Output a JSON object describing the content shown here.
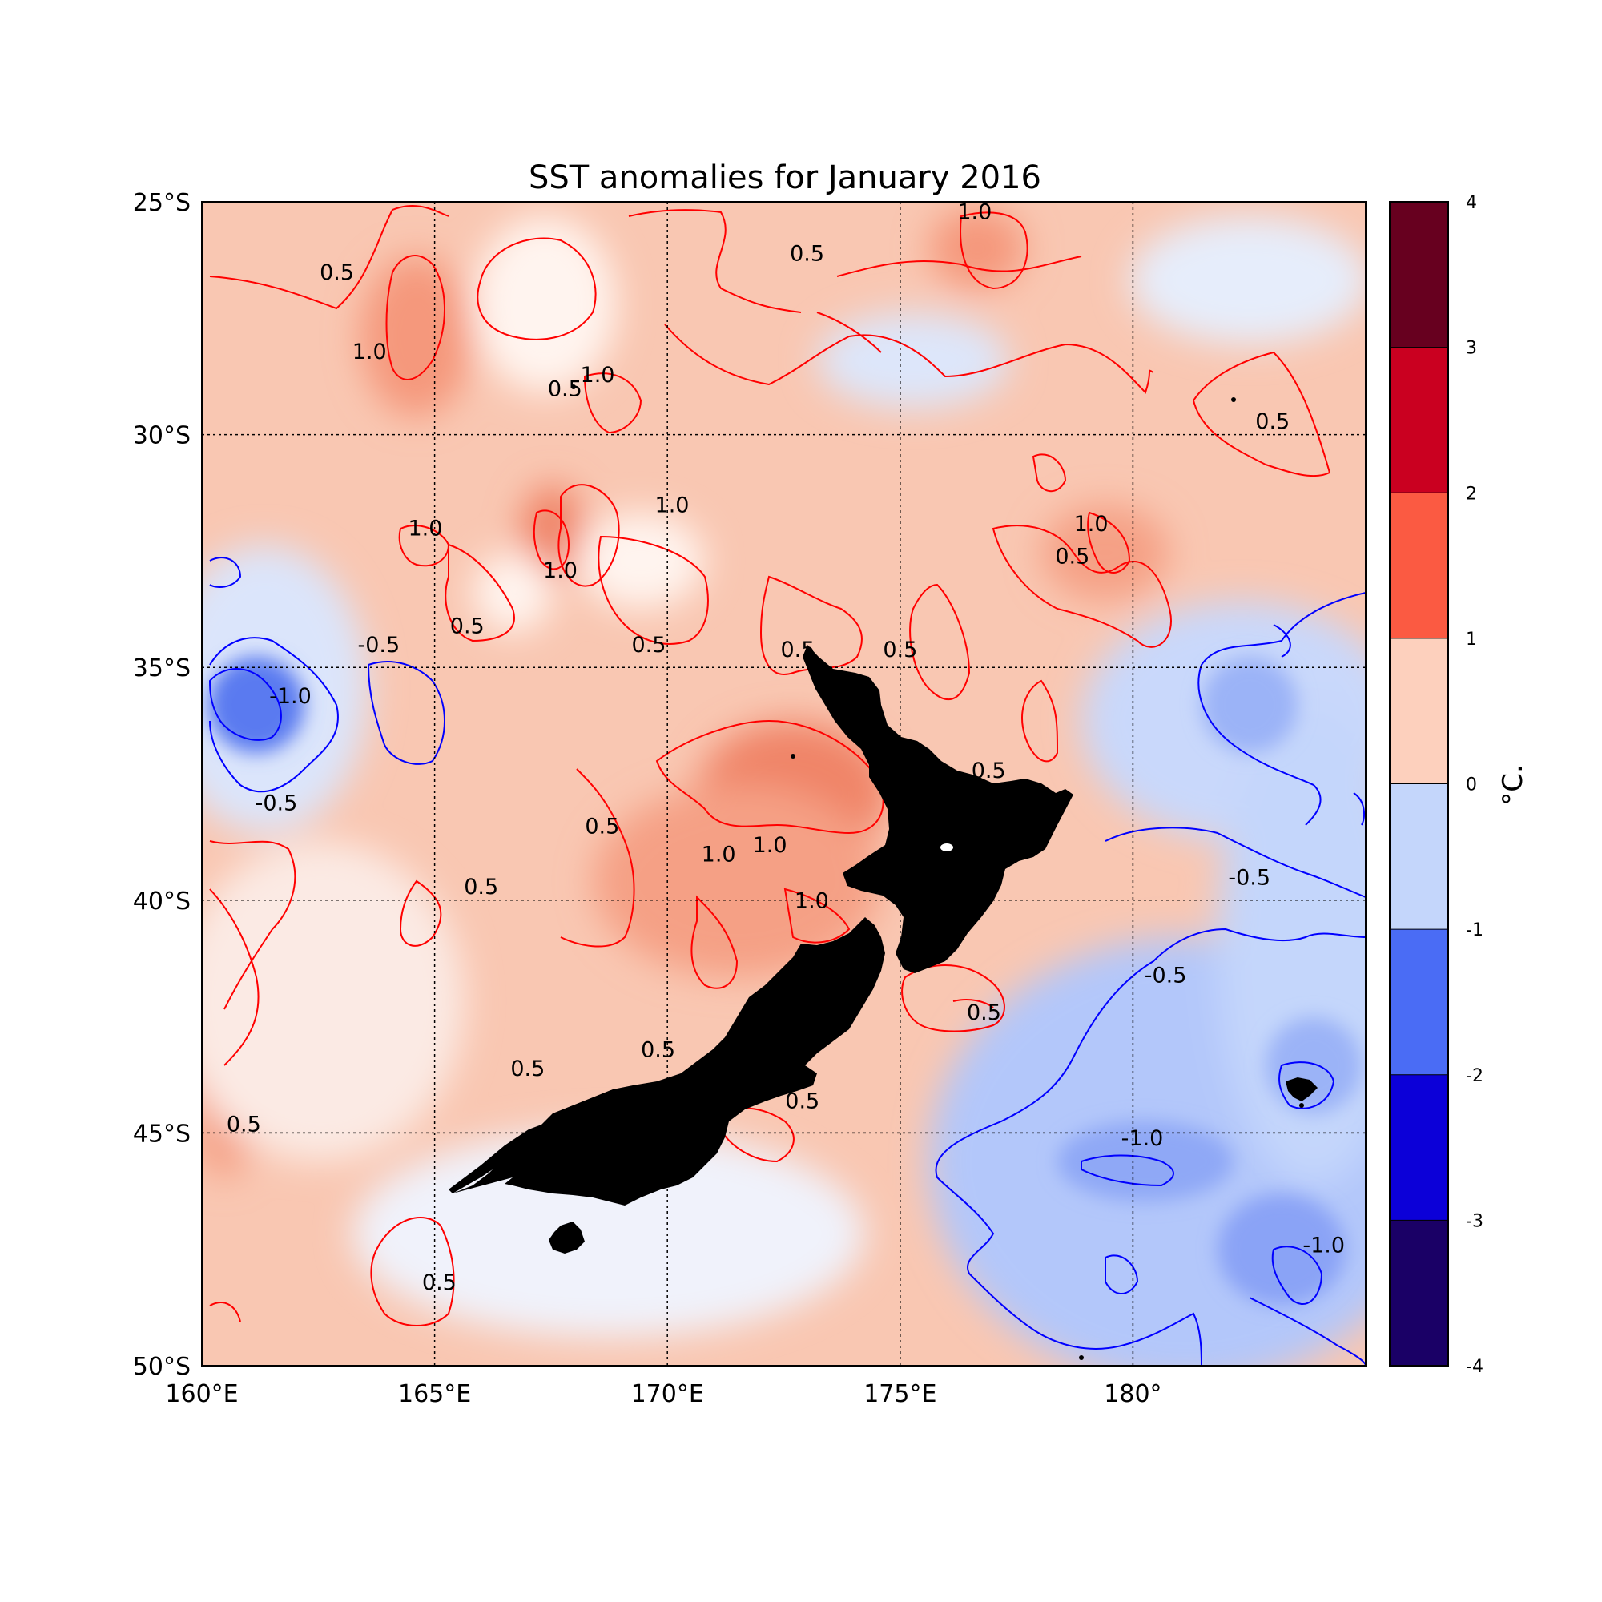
{
  "map": {
    "title": "SST anomalies for January 2016",
    "extent": {
      "lon_min": 160,
      "lon_max": 185,
      "lat_min": -50,
      "lat_max": -25
    },
    "lon_ticks": [
      {
        "value": 160,
        "label": "160°E"
      },
      {
        "value": 165,
        "label": "165°E"
      },
      {
        "value": 170,
        "label": "170°E"
      },
      {
        "value": 175,
        "label": "175°E"
      },
      {
        "value": 180,
        "label": "180°"
      }
    ],
    "lat_ticks": [
      {
        "value": -25,
        "label": "25°S"
      },
      {
        "value": -30,
        "label": "30°S"
      },
      {
        "value": -35,
        "label": "35°S"
      },
      {
        "value": -40,
        "label": "40°S"
      },
      {
        "value": -45,
        "label": "45°S"
      },
      {
        "value": -50,
        "label": "50°S"
      }
    ],
    "contour_labels": [
      {
        "text": "0.5",
        "lon": 162.9,
        "lat": -26.6,
        "color": "#000000"
      },
      {
        "text": "1.0",
        "lon": 163.6,
        "lat": -28.3,
        "color": "#000000"
      },
      {
        "text": "0.5",
        "lon": 167.8,
        "lat": -29.1,
        "color": "#000000"
      },
      {
        "text": "1.0",
        "lon": 168.5,
        "lat": -28.8,
        "color": "#000000"
      },
      {
        "text": "0.5",
        "lon": 173.0,
        "lat": -26.2,
        "color": "#000000"
      },
      {
        "text": "1.0",
        "lon": 176.6,
        "lat": -25.3,
        "color": "#000000"
      },
      {
        "text": "0.5",
        "lon": 183.0,
        "lat": -29.8,
        "color": "#000000"
      },
      {
        "text": "1.0",
        "lon": 164.8,
        "lat": -32.1,
        "color": "#000000"
      },
      {
        "text": "1.0",
        "lon": 167.7,
        "lat": -33.0,
        "color": "#000000"
      },
      {
        "text": "1.0",
        "lon": 170.1,
        "lat": -31.6,
        "color": "#000000"
      },
      {
        "text": "0.5",
        "lon": 165.7,
        "lat": -34.2,
        "color": "#000000"
      },
      {
        "text": "0.5",
        "lon": 169.6,
        "lat": -34.6,
        "color": "#000000"
      },
      {
        "text": "0.5",
        "lon": 172.8,
        "lat": -34.7,
        "color": "#000000"
      },
      {
        "text": "0.5",
        "lon": 175.0,
        "lat": -34.7,
        "color": "#000000"
      },
      {
        "text": "1.0",
        "lon": 179.1,
        "lat": -32.0,
        "color": "#000000"
      },
      {
        "text": "0.5",
        "lon": 178.7,
        "lat": -32.7,
        "color": "#000000"
      },
      {
        "text": "-0.5",
        "lon": 163.8,
        "lat": -34.6,
        "color": "#000000"
      },
      {
        "text": "-1.0",
        "lon": 161.9,
        "lat": -35.7,
        "color": "#000000"
      },
      {
        "text": "-0.5",
        "lon": 161.6,
        "lat": -38.0,
        "color": "#000000"
      },
      {
        "text": "0.5",
        "lon": 176.9,
        "lat": -37.3,
        "color": "#000000"
      },
      {
        "text": "0.5",
        "lon": 168.6,
        "lat": -38.5,
        "color": "#000000"
      },
      {
        "text": "1.0",
        "lon": 171.1,
        "lat": -39.1,
        "color": "#000000"
      },
      {
        "text": "1.0",
        "lon": 172.2,
        "lat": -38.9,
        "color": "#000000"
      },
      {
        "text": "0.5",
        "lon": 166.0,
        "lat": -39.8,
        "color": "#000000"
      },
      {
        "text": "1.0",
        "lon": 173.1,
        "lat": -40.1,
        "color": "#000000"
      },
      {
        "text": "-0.5",
        "lon": 182.5,
        "lat": -39.6,
        "color": "#000000"
      },
      {
        "text": "-0.5",
        "lon": 180.7,
        "lat": -41.7,
        "color": "#000000"
      },
      {
        "text": "0.5",
        "lon": 169.8,
        "lat": -43.3,
        "color": "#000000"
      },
      {
        "text": "0.5",
        "lon": 167.0,
        "lat": -43.7,
        "color": "#000000"
      },
      {
        "text": "0.5",
        "lon": 176.8,
        "lat": -42.5,
        "color": "#000000"
      },
      {
        "text": "0.5",
        "lon": 172.9,
        "lat": -44.4,
        "color": "#000000"
      },
      {
        "text": "0.5",
        "lon": 160.9,
        "lat": -44.9,
        "color": "#000000"
      },
      {
        "text": "-1.0",
        "lon": 180.2,
        "lat": -45.2,
        "color": "#000000"
      },
      {
        "text": "-1.0",
        "lon": 184.1,
        "lat": -47.5,
        "color": "#000000"
      },
      {
        "text": "0.5",
        "lon": 165.1,
        "lat": -48.3,
        "color": "#000000"
      }
    ],
    "land_color": "#000000",
    "positive_contour_color": "#ff0000",
    "negative_contour_color": "#0000ff"
  },
  "colorbar": {
    "unit_label": "°C.",
    "levels": [
      {
        "value": 4,
        "label": "4"
      },
      {
        "value": 3,
        "label": "3"
      },
      {
        "value": 2,
        "label": "2"
      },
      {
        "value": 1,
        "label": "1"
      },
      {
        "value": 0,
        "label": "0"
      },
      {
        "value": -1,
        "label": "-1"
      },
      {
        "value": -2,
        "label": "-2"
      },
      {
        "value": -3,
        "label": "-3"
      },
      {
        "value": -4,
        "label": "-4"
      }
    ],
    "bins": [
      {
        "from": 3,
        "to": 4,
        "color": "#67001f"
      },
      {
        "from": 2,
        "to": 3,
        "color": "#ca0020"
      },
      {
        "from": 1,
        "to": 2,
        "color": "#fb5a42"
      },
      {
        "from": 0,
        "to": 1,
        "color": "#fdd0bd"
      },
      {
        "from": -1,
        "to": 0,
        "color": "#c4d6fb"
      },
      {
        "from": -2,
        "to": -1,
        "color": "#4a6cf5"
      },
      {
        "from": -3,
        "to": -2,
        "color": "#0c00d8"
      },
      {
        "from": -4,
        "to": -3,
        "color": "#1a0066"
      }
    ]
  }
}
